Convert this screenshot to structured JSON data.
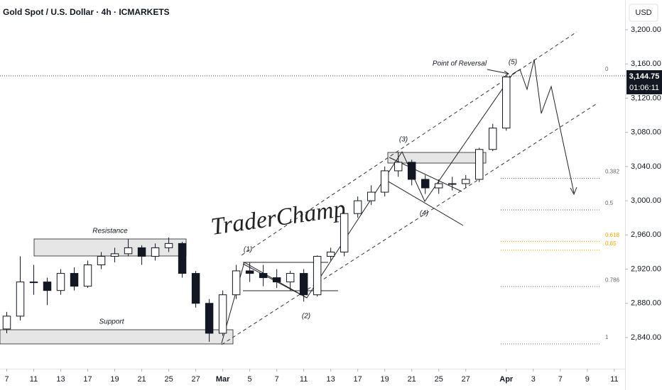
{
  "chart_data": {
    "type": "candlestick",
    "title": "Gold Spot / U.S. Dollar · 4h · ICMARKETS",
    "currency": "USD",
    "color": "#131722",
    "x": [
      0,
      1,
      2,
      3,
      4,
      5,
      6,
      7,
      8,
      9,
      10,
      11,
      12,
      13,
      14,
      15,
      16,
      17,
      18,
      19,
      20,
      21,
      22,
      23,
      24,
      25,
      26,
      27,
      28,
      29,
      30,
      31,
      32,
      33,
      34,
      35,
      36,
      37
    ],
    "open": [
      2850,
      2865,
      2905,
      2905,
      2895,
      2915,
      2900,
      2925,
      2935,
      2938,
      2945,
      2935,
      2945,
      2950,
      2915,
      2880,
      2845,
      2890,
      2918,
      2915,
      2910,
      2905,
      2915,
      2890,
      2935,
      2940,
      2985,
      3000,
      3010,
      3035,
      3045,
      3025,
      3015,
      3020,
      3020,
      3025,
      3060,
      3085
    ],
    "high": [
      2870,
      2935,
      2925,
      2910,
      2920,
      2922,
      2930,
      2940,
      2945,
      2955,
      2948,
      2950,
      2957,
      2952,
      2918,
      2885,
      2895,
      2925,
      2928,
      2925,
      2920,
      2918,
      2920,
      2936,
      2945,
      2988,
      3005,
      3018,
      3040,
      3057,
      3048,
      3030,
      3025,
      3028,
      3030,
      3062,
      3090,
      3148
    ],
    "low": [
      2845,
      2860,
      2890,
      2878,
      2890,
      2895,
      2898,
      2920,
      2928,
      2935,
      2925,
      2930,
      2940,
      2910,
      2875,
      2835,
      2842,
      2885,
      2905,
      2900,
      2898,
      2895,
      2882,
      2888,
      2930,
      2935,
      2980,
      2995,
      3005,
      3028,
      3018,
      3008,
      3008,
      3012,
      3015,
      3022,
      3058,
      3082
    ],
    "close": [
      2865,
      2905,
      2905,
      2895,
      2915,
      2900,
      2925,
      2935,
      2938,
      2945,
      2935,
      2945,
      2950,
      2915,
      2880,
      2845,
      2890,
      2918,
      2915,
      2910,
      2905,
      2915,
      2890,
      2935,
      2940,
      2985,
      3000,
      3010,
      3035,
      3045,
      3025,
      3015,
      3020,
      3020,
      3025,
      3060,
      3085,
      3144.75
    ],
    "last_price": {
      "value": 3144.75,
      "label": "3,144.75"
    },
    "countdown": "01:06:11",
    "xlim": [
      -0.5,
      45.8
    ],
    "xticks": [
      {
        "value": 0,
        "label": "7"
      },
      {
        "value": 2,
        "label": "11"
      },
      {
        "value": 4,
        "label": "13"
      },
      {
        "value": 6,
        "label": "17"
      },
      {
        "value": 8,
        "label": "19"
      },
      {
        "value": 10,
        "label": "21"
      },
      {
        "value": 12,
        "label": "25"
      },
      {
        "value": 14,
        "label": "27"
      },
      {
        "value": 16,
        "label": "Mar"
      },
      {
        "value": 18,
        "label": "5"
      },
      {
        "value": 20,
        "label": "7"
      },
      {
        "value": 22,
        "label": "11"
      },
      {
        "value": 24,
        "label": "13"
      },
      {
        "value": 26,
        "label": "17"
      },
      {
        "value": 28,
        "label": "19"
      },
      {
        "value": 30,
        "label": "21"
      },
      {
        "value": 32,
        "label": "25"
      },
      {
        "value": 34,
        "label": "27"
      },
      {
        "value": 37,
        "label": "Apr"
      },
      {
        "value": 39,
        "label": "3"
      },
      {
        "value": 41,
        "label": "7"
      },
      {
        "value": 43,
        "label": "9"
      },
      {
        "value": 45,
        "label": "11"
      }
    ],
    "ylim": [
      2803.5,
      3234.8
    ],
    "yticks": [
      {
        "value": 2840,
        "label": "2,840.00"
      },
      {
        "value": 2880,
        "label": "2,880.00"
      },
      {
        "value": 2920,
        "label": "2,920.00"
      },
      {
        "value": 2960,
        "label": "2,960.00"
      },
      {
        "value": 3000,
        "label": "3,000.00"
      },
      {
        "value": 3040,
        "label": "3,040.00"
      },
      {
        "value": 3080,
        "label": "3,080.00"
      },
      {
        "value": 3120,
        "label": "3,120.00"
      },
      {
        "value": 3160,
        "label": "3,160.00"
      },
      {
        "value": 3200,
        "label": "3,200.00"
      }
    ],
    "fib": {
      "start": 2832.5,
      "end": 3146,
      "levels": [
        0,
        0.382,
        0.5,
        0.618,
        0.65,
        0.786,
        1
      ]
    },
    "annotations": {
      "resistance": "Resistance",
      "support": "Support",
      "reversal": "Point of Reversal",
      "watermark": "TraderChamp",
      "waves": [
        "(1)",
        "(2)",
        "(3)",
        "(4)",
        "(5)"
      ]
    }
  }
}
